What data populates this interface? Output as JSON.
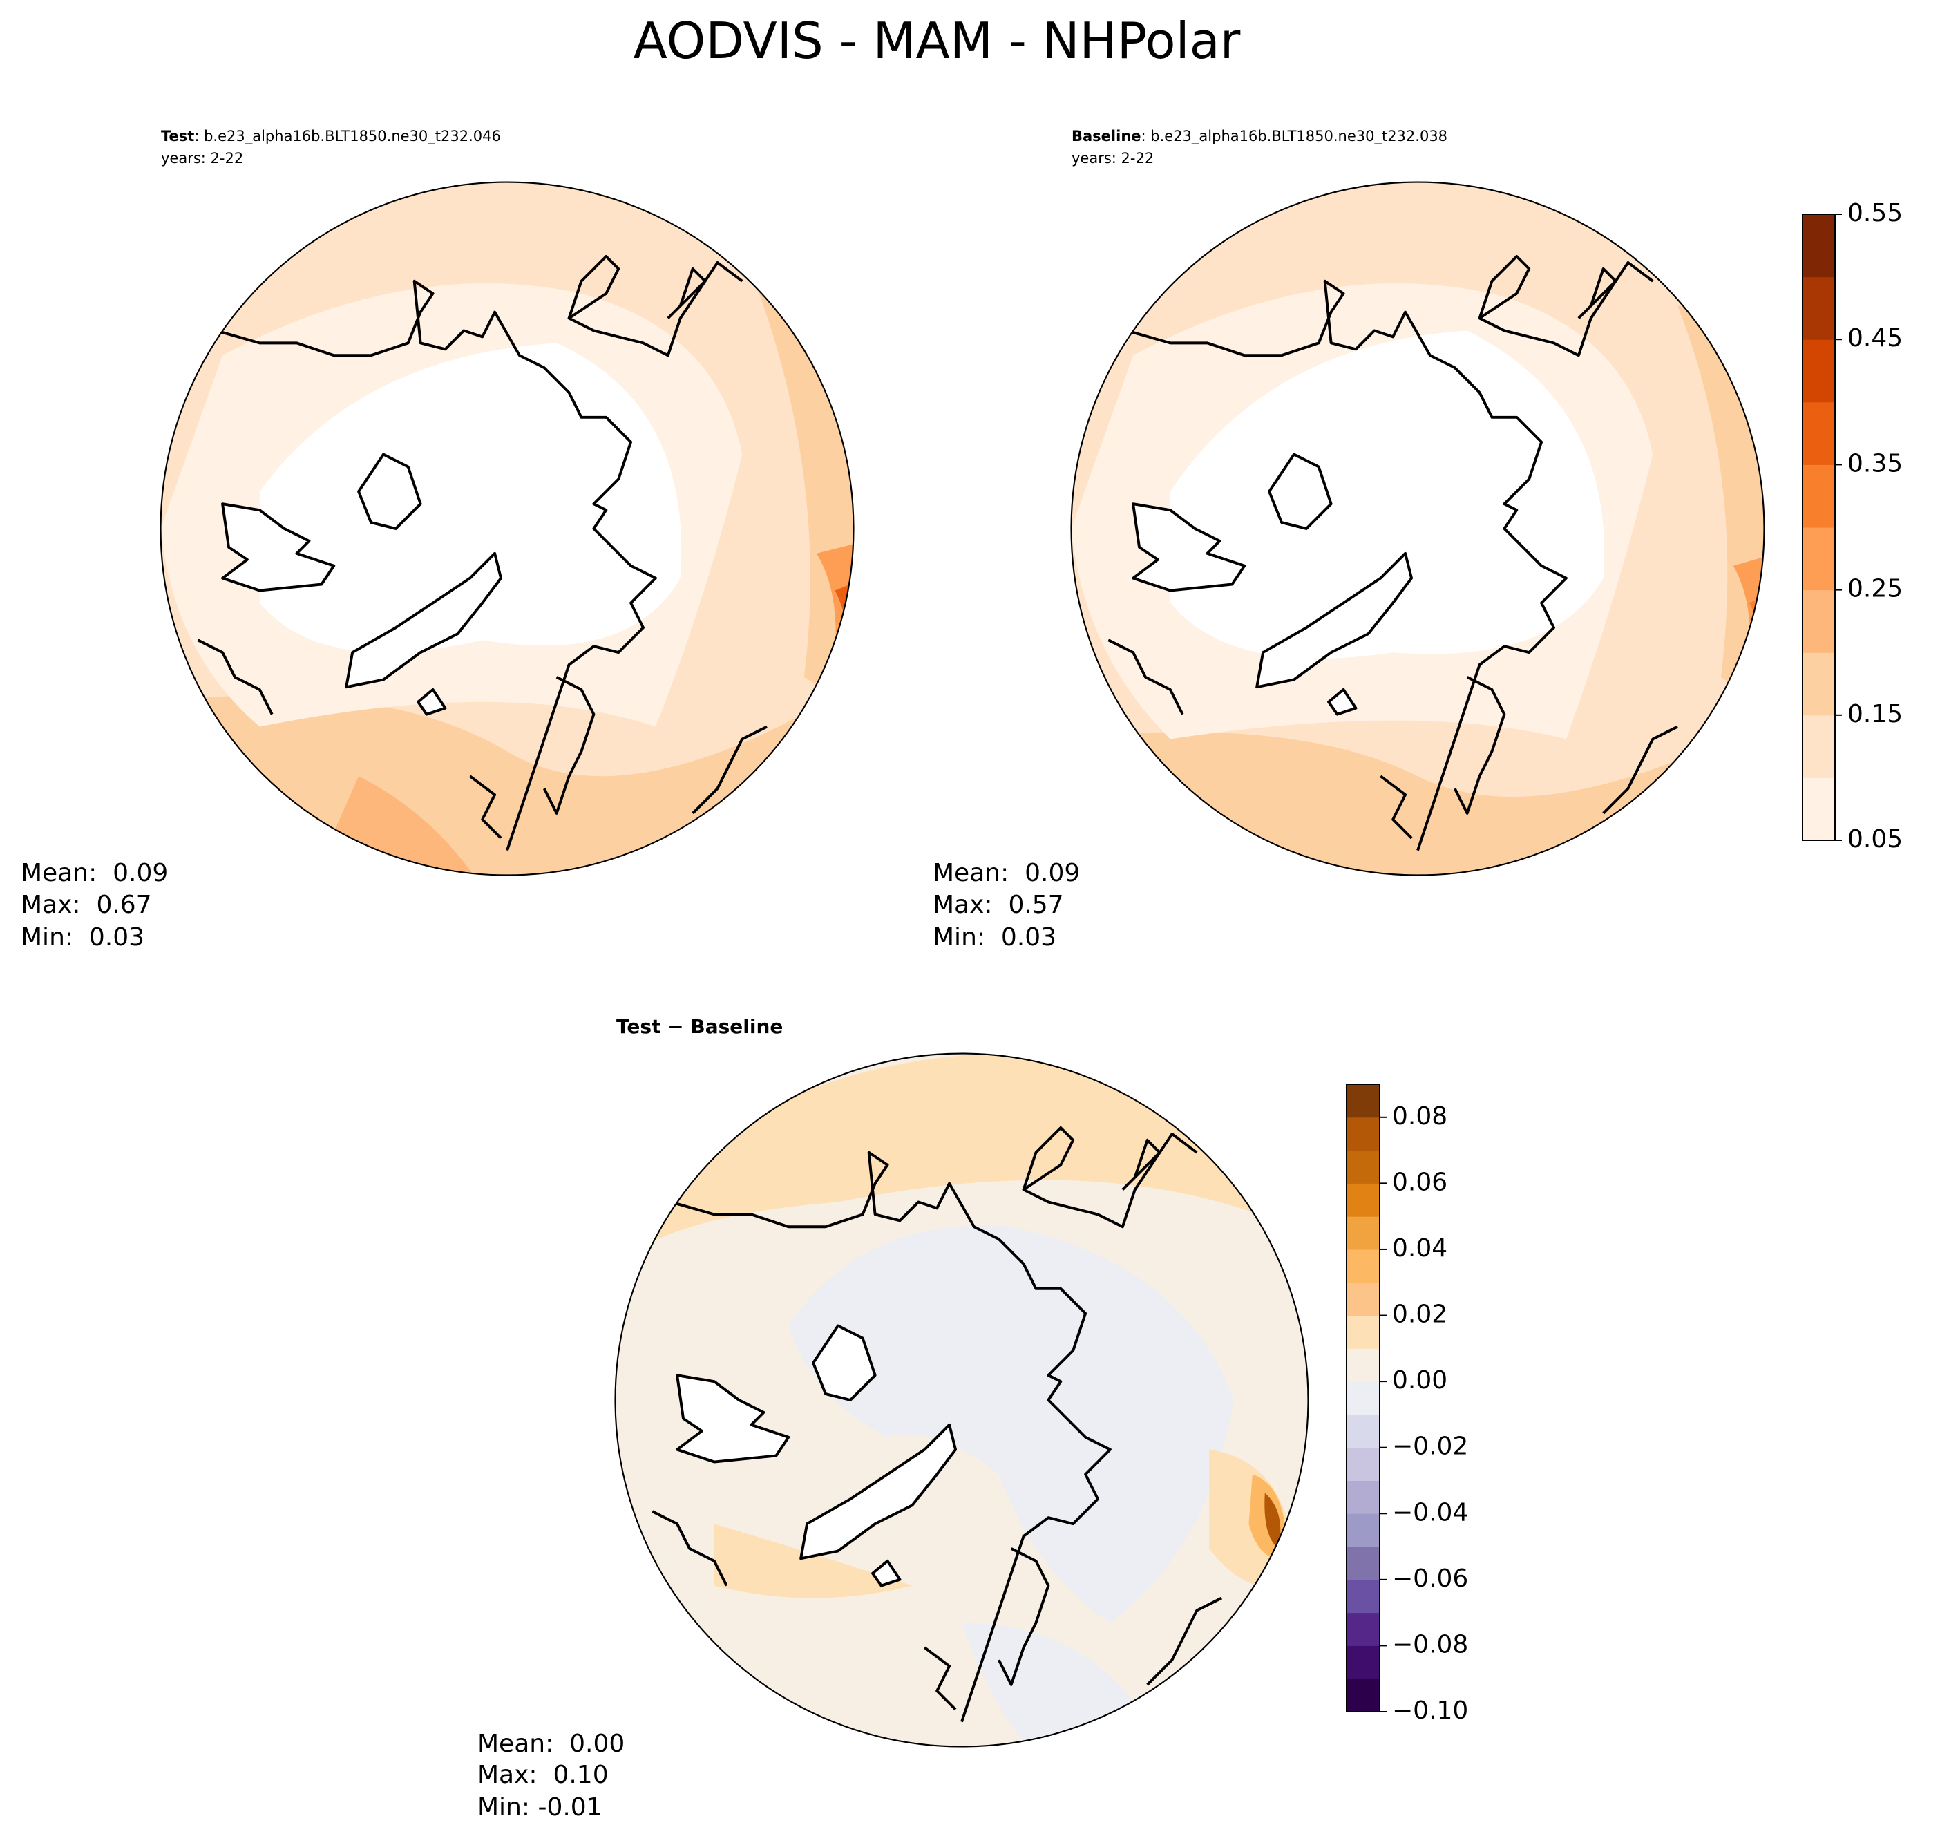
{
  "title": "AODVIS - MAM - NHPolar",
  "panels": [
    {
      "label": "Test",
      "case": ": b.e23_alpha16b.BLT1850.ne30_t232.046",
      "years": "years: 2-22",
      "stats": [
        "Mean:  0.09",
        "Max:  0.67",
        "Min:  0.03"
      ]
    },
    {
      "label": "Baseline",
      "case": ": b.e23_alpha16b.BLT1850.ne30_t232.038",
      "years": "years: 2-22",
      "stats": [
        "Mean:  0.09",
        "Max:  0.57",
        "Min:  0.03"
      ]
    },
    {
      "label": "Test − Baseline",
      "stats": [
        "Mean:  0.00",
        "Max:  0.10",
        "Min: -0.01"
      ]
    }
  ],
  "colorbars": [
    {
      "lim": [
        0.05,
        0.55
      ],
      "ticks": [
        0.05,
        0.15,
        0.25,
        0.35,
        0.45,
        0.55
      ],
      "colors": [
        "#fff1e3",
        "#fee3c8",
        "#fdd0a2",
        "#fdb77a",
        "#fd9e54",
        "#f87f2c",
        "#ea6010",
        "#d34602",
        "#a83703",
        "#7f2704"
      ]
    },
    {
      "lim": [
        -0.1,
        0.09
      ],
      "ticks": [
        {
          "value": -0.1,
          "label": "−0.10"
        },
        {
          "value": -0.08,
          "label": "−0.08"
        },
        {
          "value": -0.06,
          "label": "−0.06"
        },
        {
          "value": -0.04,
          "label": "−0.04"
        },
        {
          "value": -0.02,
          "label": "−0.02"
        },
        {
          "value": 0,
          "label": "0.00"
        },
        0.02,
        0.04,
        0.06,
        0.08
      ],
      "colors": [
        "#2d004b",
        "#3f0d6b",
        "#542788",
        "#6a51a3",
        "#8073ac",
        "#9e9ac8",
        "#b2abd2",
        "#c9c4e0",
        "#d8daeb",
        "#eceef4",
        "#f7efe4",
        "#fee0b6",
        "#fdc48a",
        "#fdb863",
        "#f1a340",
        "#e08214",
        "#c56a0b",
        "#b35806",
        "#7f3b08"
      ]
    }
  ]
}
